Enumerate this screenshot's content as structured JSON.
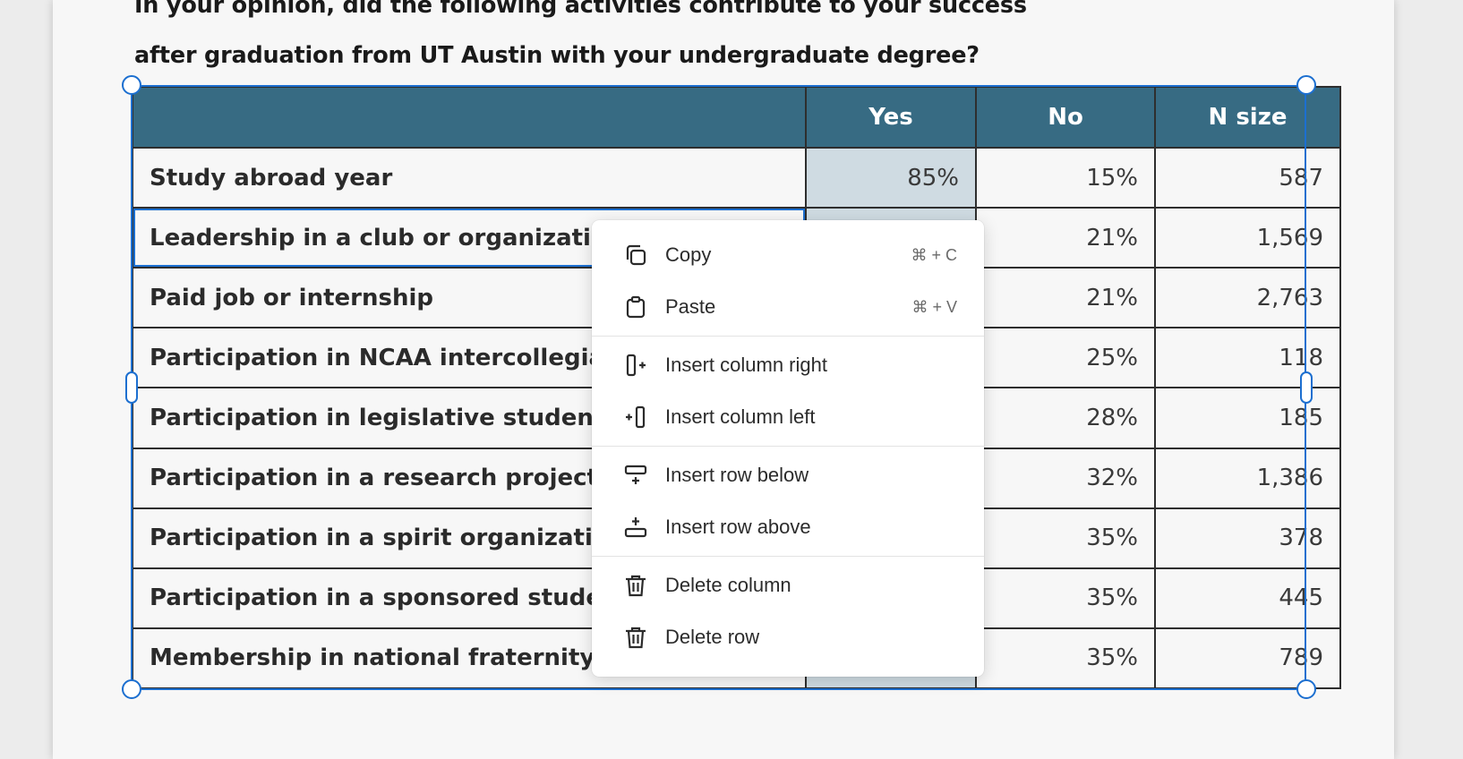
{
  "question": {
    "line1": "In your opinion, did the following activities contribute to your success",
    "line2": "after graduation from UT Austin with your undergraduate degree?"
  },
  "table": {
    "headers": [
      "",
      "Yes",
      "No",
      "N size"
    ],
    "rows": [
      {
        "label": "Study abroad year",
        "yes": "85%",
        "no": "15%",
        "n": "587"
      },
      {
        "label": "Leadership in a club or organization",
        "yes": "",
        "no": "21%",
        "n": "1,569"
      },
      {
        "label": "Paid job or internship",
        "yes": "",
        "no": "21%",
        "n": "2,763"
      },
      {
        "label": "Participation in NCAA intercollegiate at",
        "yes": "",
        "no": "25%",
        "n": "118"
      },
      {
        "label": "Participation in legislative student orga",
        "yes": "",
        "no": "28%",
        "n": "185"
      },
      {
        "label": "Participation in a research project with",
        "yes": "",
        "no": "32%",
        "n": "1,386"
      },
      {
        "label": "Participation in a spirit organization",
        "yes": "",
        "no": "35%",
        "n": "378"
      },
      {
        "label": "Participation in a sponsored student org",
        "yes": "",
        "no": "35%",
        "n": "445"
      },
      {
        "label": "Membership in national fraternity or so",
        "yes": "",
        "no": "35%",
        "n": "789"
      }
    ]
  },
  "context_menu": {
    "items": [
      {
        "label": "Copy",
        "shortcut": "⌘ + C",
        "icon": "copy-icon"
      },
      {
        "label": "Paste",
        "shortcut": "⌘ + V",
        "icon": "clipboard-icon"
      },
      {
        "label": "Insert column right",
        "icon": "insert-column-right-icon"
      },
      {
        "label": "Insert column left",
        "icon": "insert-column-left-icon"
      },
      {
        "label": "Insert row below",
        "icon": "insert-row-below-icon"
      },
      {
        "label": "Insert row above",
        "icon": "insert-row-above-icon"
      },
      {
        "label": "Delete column",
        "icon": "trash-icon"
      },
      {
        "label": "Delete row",
        "icon": "trash-icon"
      }
    ]
  },
  "colors": {
    "header_bg": "#376b83",
    "selected_cell_bg": "#cfdbe2",
    "selection_blue": "#1c6fd0"
  }
}
